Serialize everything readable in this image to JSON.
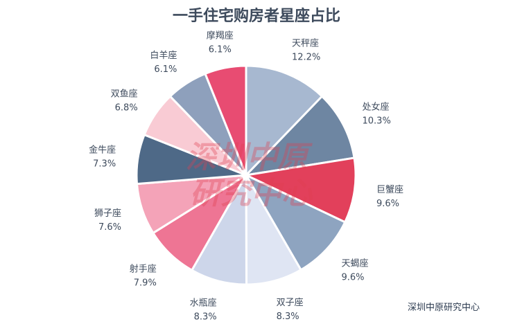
{
  "chart_data": {
    "type": "pie",
    "title": "一手住宅购房者星座占比",
    "source": "深圳中原研究中心",
    "watermark": [
      "深圳中原",
      "研究中心"
    ],
    "slices": [
      {
        "label": "天秤座",
        "value": 12.2,
        "display": "12.2%",
        "color": "#a7b8d0"
      },
      {
        "label": "处女座",
        "value": 10.3,
        "display": "10.3%",
        "color": "#6e86a2"
      },
      {
        "label": "巨蟹座",
        "value": 9.6,
        "display": "9.6%",
        "color": "#e2405b"
      },
      {
        "label": "天蝎座",
        "value": 9.6,
        "display": "9.6%",
        "color": "#8ea4c0"
      },
      {
        "label": "双子座",
        "value": 8.3,
        "display": "8.3%",
        "color": "#dfe5f3"
      },
      {
        "label": "水瓶座",
        "value": 8.3,
        "display": "8.3%",
        "color": "#cdd6ea"
      },
      {
        "label": "射手座",
        "value": 7.9,
        "display": "7.9%",
        "color": "#ee7594"
      },
      {
        "label": "狮子座",
        "value": 7.6,
        "display": "7.6%",
        "color": "#f4a3b8"
      },
      {
        "label": "金牛座",
        "value": 7.3,
        "display": "7.3%",
        "color": "#4e6987"
      },
      {
        "label": "双鱼座",
        "value": 6.8,
        "display": "6.8%",
        "color": "#f9cbd4"
      },
      {
        "label": "白羊座",
        "value": 6.1,
        "display": "6.1%",
        "color": "#8ea0bc"
      },
      {
        "label": "摩羯座",
        "value": 6.1,
        "display": "6.1%",
        "color": "#e84c72"
      }
    ]
  }
}
